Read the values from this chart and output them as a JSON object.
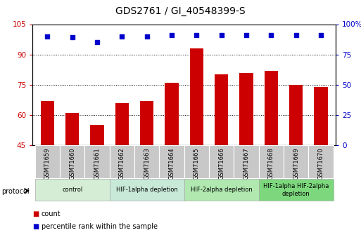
{
  "title": "GDS2761 / GI_40548399-S",
  "samples": [
    "GSM71659",
    "GSM71660",
    "GSM71661",
    "GSM71662",
    "GSM71663",
    "GSM71664",
    "GSM71665",
    "GSM71666",
    "GSM71667",
    "GSM71668",
    "GSM71669",
    "GSM71670"
  ],
  "counts": [
    67,
    61,
    55,
    66,
    67,
    76,
    93,
    80,
    81,
    82,
    75,
    74
  ],
  "percentile_ranks": [
    90,
    89,
    85,
    90,
    90,
    91,
    91,
    91,
    91,
    91,
    91,
    91
  ],
  "ylim_left": [
    45,
    105
  ],
  "ylim_right": [
    0,
    100
  ],
  "yticks_left": [
    45,
    60,
    75,
    90,
    105
  ],
  "yticks_right": [
    0,
    25,
    50,
    75,
    100
  ],
  "ytick_labels_left": [
    "45",
    "60",
    "75",
    "90",
    "105"
  ],
  "ytick_labels_right": [
    "0",
    "25",
    "50",
    "75",
    "100%"
  ],
  "bar_color": "#cc0000",
  "dot_color": "#0000cc",
  "grid_color": "#000000",
  "bg_color": "#ffffff",
  "groups": [
    {
      "label": "control",
      "start": 0,
      "end": 3,
      "color": "#d4edd4"
    },
    {
      "label": "HIF-1alpha depletion",
      "start": 3,
      "end": 6,
      "color": "#c8e8d8"
    },
    {
      "label": "HIF-2alpha depletion",
      "start": 6,
      "end": 9,
      "color": "#b0e8b0"
    },
    {
      "label": "HIF-1alpha HIF-2alpha\ndepletion",
      "start": 9,
      "end": 12,
      "color": "#7dd87d"
    }
  ],
  "protocol_label": "protocol",
  "legend_items": [
    {
      "label": "count",
      "color": "#cc0000"
    },
    {
      "label": "percentile rank within the sample",
      "color": "#0000cc"
    }
  ],
  "bar_bottom": 45
}
